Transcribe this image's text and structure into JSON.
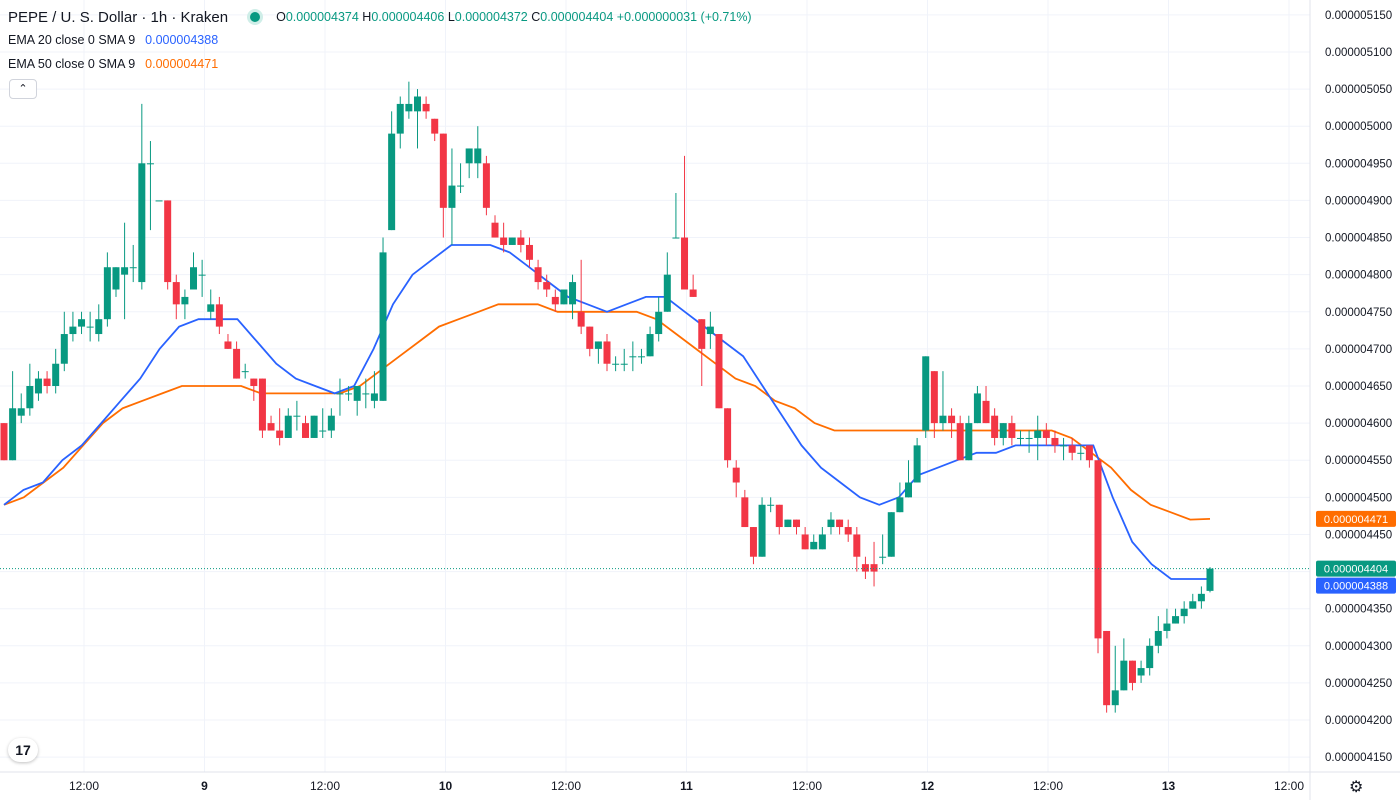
{
  "header": {
    "title": "PEPE / U. S. Dollar · 1h · Kraken",
    "ohlc": {
      "o_label": "O",
      "o": "0.000004374",
      "h_label": "H",
      "h": "0.000004406",
      "l_label": "L",
      "l": "0.000004372",
      "c_label": "C",
      "c": "0.000004404",
      "change": "+0.000000031 (+0.71%)"
    },
    "ema20_label": "EMA 20 close 0 SMA 9",
    "ema20_value": "0.000004388",
    "ema50_label": "EMA 50 close 0 SMA 9",
    "ema50_value": "0.000004471",
    "collapse_icon": "chevron-up-icon",
    "logo_text": "17",
    "settings_icon": "gear-icon"
  },
  "colors": {
    "up": "#089981",
    "down": "#f23645",
    "ema20": "#2962ff",
    "ema50": "#ff6d00",
    "grid": "#f0f3fa",
    "text": "#131722"
  },
  "chart_data": {
    "type": "candlestick",
    "ylim": [
      4.13e-06,
      5.17e-06
    ],
    "y_ticks": [
      "0.000005150",
      "0.000005100",
      "0.000005050",
      "0.000005000",
      "0.000004950",
      "0.000004900",
      "0.000004850",
      "0.000004800",
      "0.000004750",
      "0.000004700",
      "0.000004650",
      "0.000004600",
      "0.000004550",
      "0.000004500",
      "0.000004450",
      "0.000004400",
      "0.000004350",
      "0.000004300",
      "0.000004250",
      "0.000004200",
      "0.000004150"
    ],
    "x_tick_labels": [
      "12:00",
      "9",
      "12:00",
      "10",
      "12:00",
      "11",
      "12:00",
      "12",
      "12:00",
      "13",
      "12:00"
    ],
    "bold_x_ticks": [
      "9",
      "10",
      "11",
      "12",
      "13"
    ],
    "grid": true,
    "last_price": "0.000004404",
    "price_tags": [
      {
        "label": "0.000004471",
        "value": 4.471e-06,
        "color": "#ff6d00"
      },
      {
        "label": "0.000004404",
        "value": 4.404e-06,
        "color": "#089981"
      },
      {
        "label": "0.000004388",
        "value": 4.388e-06,
        "color": "#2962ff"
      }
    ],
    "candles": [
      [
        4.6,
        4.55,
        4.6,
        4.55
      ],
      [
        4.55,
        4.62,
        4.67,
        4.55
      ],
      [
        4.61,
        4.62,
        4.64,
        4.6
      ],
      [
        4.62,
        4.65,
        4.68,
        4.61
      ],
      [
        4.64,
        4.66,
        4.67,
        4.63
      ],
      [
        4.66,
        4.65,
        4.67,
        4.64
      ],
      [
        4.65,
        4.68,
        4.7,
        4.64
      ],
      [
        4.68,
        4.72,
        4.75,
        4.67
      ],
      [
        4.72,
        4.73,
        4.75,
        4.71
      ],
      [
        4.73,
        4.74,
        4.75,
        4.72
      ],
      [
        4.73,
        4.73,
        4.75,
        4.71
      ],
      [
        4.72,
        4.74,
        4.76,
        4.71
      ],
      [
        4.74,
        4.81,
        4.83,
        4.73
      ],
      [
        4.78,
        4.81,
        4.81,
        4.77
      ],
      [
        4.8,
        4.81,
        4.87,
        4.74
      ],
      [
        4.81,
        4.81,
        4.84,
        4.79
      ],
      [
        4.79,
        4.95,
        5.03,
        4.78
      ],
      [
        4.95,
        4.95,
        4.98,
        4.86
      ],
      [
        4.9,
        4.9,
        4.9,
        4.9
      ],
      [
        4.9,
        4.79,
        4.9,
        4.78
      ],
      [
        4.79,
        4.76,
        4.8,
        4.74
      ],
      [
        4.76,
        4.77,
        4.78,
        4.74
      ],
      [
        4.78,
        4.81,
        4.83,
        4.78
      ],
      [
        4.8,
        4.8,
        4.82,
        4.77
      ],
      [
        4.75,
        4.76,
        4.78,
        4.74
      ],
      [
        4.76,
        4.73,
        4.77,
        4.72
      ],
      [
        4.71,
        4.7,
        4.72,
        4.7
      ],
      [
        4.7,
        4.66,
        4.71,
        4.66
      ],
      [
        4.67,
        4.67,
        4.68,
        4.66
      ],
      [
        4.66,
        4.65,
        4.66,
        4.63
      ],
      [
        4.66,
        4.59,
        4.66,
        4.58
      ],
      [
        4.6,
        4.59,
        4.61,
        4.59
      ],
      [
        4.59,
        4.58,
        4.62,
        4.57
      ],
      [
        4.58,
        4.61,
        4.62,
        4.58
      ],
      [
        4.61,
        4.61,
        4.63,
        4.59
      ],
      [
        4.6,
        4.58,
        4.61,
        4.58
      ],
      [
        4.58,
        4.61,
        4.61,
        4.58
      ],
      [
        4.59,
        4.59,
        4.62,
        4.58
      ],
      [
        4.59,
        4.61,
        4.62,
        4.58
      ],
      [
        4.64,
        4.64,
        4.66,
        4.61
      ],
      [
        4.64,
        4.64,
        4.65,
        4.63
      ],
      [
        4.63,
        4.65,
        4.65,
        4.61
      ],
      [
        4.64,
        4.64,
        4.66,
        4.62
      ],
      [
        4.63,
        4.64,
        4.67,
        4.62
      ],
      [
        4.63,
        4.83,
        4.85,
        4.63
      ],
      [
        4.86,
        4.99,
        5.02,
        4.86
      ],
      [
        4.99,
        5.03,
        5.04,
        4.97
      ],
      [
        5.02,
        5.03,
        5.06,
        5.01
      ],
      [
        5.02,
        5.04,
        5.05,
        4.97
      ],
      [
        5.03,
        5.02,
        5.04,
        5.01
      ],
      [
        5.01,
        4.99,
        5.01,
        4.98
      ],
      [
        4.99,
        4.89,
        4.99,
        4.85
      ],
      [
        4.89,
        4.92,
        4.97,
        4.84
      ],
      [
        4.92,
        4.92,
        4.95,
        4.91
      ],
      [
        4.95,
        4.97,
        4.97,
        4.93
      ],
      [
        4.95,
        4.97,
        5.0,
        4.93
      ],
      [
        4.95,
        4.89,
        4.96,
        4.88
      ],
      [
        4.87,
        4.85,
        4.88,
        4.85
      ],
      [
        4.85,
        4.84,
        4.87,
        4.83
      ],
      [
        4.84,
        4.85,
        4.85,
        4.84
      ],
      [
        4.85,
        4.84,
        4.86,
        4.83
      ],
      [
        4.84,
        4.82,
        4.85,
        4.81
      ],
      [
        4.81,
        4.79,
        4.82,
        4.78
      ],
      [
        4.79,
        4.78,
        4.8,
        4.77
      ],
      [
        4.77,
        4.76,
        4.78,
        4.75
      ],
      [
        4.76,
        4.78,
        4.78,
        4.76
      ],
      [
        4.76,
        4.79,
        4.8,
        4.74
      ],
      [
        4.75,
        4.73,
        4.82,
        4.72
      ],
      [
        4.73,
        4.7,
        4.73,
        4.69
      ],
      [
        4.7,
        4.71,
        4.71,
        4.68
      ],
      [
        4.71,
        4.68,
        4.72,
        4.67
      ],
      [
        4.68,
        4.68,
        4.69,
        4.67
      ],
      [
        4.68,
        4.68,
        4.7,
        4.67
      ],
      [
        4.69,
        4.69,
        4.71,
        4.67
      ],
      [
        4.69,
        4.69,
        4.7,
        4.68
      ],
      [
        4.69,
        4.72,
        4.73,
        4.69
      ],
      [
        4.72,
        4.75,
        4.77,
        4.71
      ],
      [
        4.75,
        4.8,
        4.83,
        4.75
      ],
      [
        4.85,
        4.85,
        4.91,
        4.85
      ],
      [
        4.85,
        4.78,
        4.96,
        4.78
      ],
      [
        4.78,
        4.77,
        4.8,
        4.77
      ],
      [
        4.74,
        4.7,
        4.74,
        4.65
      ],
      [
        4.72,
        4.73,
        4.75,
        4.7
      ],
      [
        4.72,
        4.62,
        4.72,
        4.62
      ],
      [
        4.62,
        4.55,
        4.62,
        4.54
      ],
      [
        4.54,
        4.52,
        4.55,
        4.5
      ],
      [
        4.5,
        4.46,
        4.51,
        4.46
      ],
      [
        4.46,
        4.42,
        4.46,
        4.41
      ],
      [
        4.42,
        4.49,
        4.5,
        4.42
      ],
      [
        4.49,
        4.49,
        4.5,
        4.48
      ],
      [
        4.49,
        4.46,
        4.49,
        4.45
      ],
      [
        4.46,
        4.47,
        4.47,
        4.46
      ],
      [
        4.47,
        4.46,
        4.47,
        4.45
      ],
      [
        4.45,
        4.43,
        4.46,
        4.43
      ],
      [
        4.43,
        4.44,
        4.45,
        4.43
      ],
      [
        4.43,
        4.45,
        4.46,
        4.43
      ],
      [
        4.46,
        4.47,
        4.48,
        4.45
      ],
      [
        4.47,
        4.46,
        4.47,
        4.45
      ],
      [
        4.46,
        4.45,
        4.47,
        4.44
      ],
      [
        4.45,
        4.42,
        4.46,
        4.4
      ],
      [
        4.41,
        4.4,
        4.42,
        4.39
      ],
      [
        4.41,
        4.4,
        4.44,
        4.38
      ],
      [
        4.42,
        4.42,
        4.45,
        4.41
      ],
      [
        4.42,
        4.48,
        4.48,
        4.42
      ],
      [
        4.48,
        4.5,
        4.52,
        4.48
      ],
      [
        4.5,
        4.52,
        4.55,
        4.5
      ],
      [
        4.52,
        4.57,
        4.58,
        4.52
      ],
      [
        4.59,
        4.69,
        4.69,
        4.58
      ],
      [
        4.67,
        4.6,
        4.67,
        4.58
      ],
      [
        4.6,
        4.61,
        4.67,
        4.59
      ],
      [
        4.61,
        4.6,
        4.62,
        4.58
      ],
      [
        4.6,
        4.55,
        4.61,
        4.55
      ],
      [
        4.55,
        4.6,
        4.61,
        4.55
      ],
      [
        4.6,
        4.64,
        4.65,
        4.6
      ],
      [
        4.63,
        4.6,
        4.65,
        4.6
      ],
      [
        4.61,
        4.58,
        4.62,
        4.57
      ],
      [
        4.58,
        4.6,
        4.6,
        4.57
      ],
      [
        4.6,
        4.58,
        4.61,
        4.57
      ],
      [
        4.58,
        4.58,
        4.59,
        4.57
      ],
      [
        4.58,
        4.58,
        4.59,
        4.56
      ],
      [
        4.58,
        4.59,
        4.61,
        4.55
      ],
      [
        4.59,
        4.58,
        4.6,
        4.57
      ],
      [
        4.58,
        4.57,
        4.59,
        4.56
      ],
      [
        4.57,
        4.57,
        4.58,
        4.55
      ],
      [
        4.57,
        4.56,
        4.58,
        4.55
      ],
      [
        4.56,
        4.56,
        4.57,
        4.55
      ],
      [
        4.57,
        4.55,
        4.57,
        4.54
      ],
      [
        4.55,
        4.31,
        4.55,
        4.29
      ],
      [
        4.32,
        4.22,
        4.32,
        4.21
      ],
      [
        4.22,
        4.24,
        4.3,
        4.21
      ],
      [
        4.24,
        4.28,
        4.31,
        4.24
      ],
      [
        4.28,
        4.25,
        4.28,
        4.24
      ],
      [
        4.26,
        4.27,
        4.28,
        4.25
      ],
      [
        4.27,
        4.3,
        4.31,
        4.26
      ],
      [
        4.3,
        4.32,
        4.34,
        4.29
      ],
      [
        4.32,
        4.33,
        4.35,
        4.31
      ],
      [
        4.33,
        4.34,
        4.35,
        4.33
      ],
      [
        4.34,
        4.35,
        4.36,
        4.33
      ],
      [
        4.35,
        4.36,
        4.37,
        4.35
      ],
      [
        4.36,
        4.37,
        4.38,
        4.35
      ],
      [
        4.374,
        4.404,
        4.406,
        4.372
      ]
    ],
    "ema20": [
      4.49,
      4.51,
      4.52,
      4.55,
      4.57,
      4.6,
      4.63,
      4.66,
      4.7,
      4.73,
      4.74,
      4.74,
      4.74,
      4.71,
      4.68,
      4.66,
      4.65,
      4.64,
      4.65,
      4.7,
      4.76,
      4.8,
      4.82,
      4.84,
      4.84,
      4.84,
      4.83,
      4.81,
      4.79,
      4.77,
      4.76,
      4.75,
      4.76,
      4.77,
      4.77,
      4.75,
      4.73,
      4.71,
      4.69,
      4.65,
      4.61,
      4.57,
      4.54,
      4.52,
      4.5,
      4.49,
      4.5,
      4.53,
      4.54,
      4.55,
      4.56,
      4.56,
      4.57,
      4.57,
      4.57,
      4.57,
      4.57,
      4.5,
      4.44,
      4.41,
      4.39,
      4.39,
      4.39
    ],
    "ema50": [
      4.49,
      4.5,
      4.52,
      4.54,
      4.57,
      4.6,
      4.62,
      4.63,
      4.64,
      4.65,
      4.65,
      4.65,
      4.65,
      4.64,
      4.64,
      4.64,
      4.64,
      4.64,
      4.65,
      4.67,
      4.69,
      4.71,
      4.73,
      4.74,
      4.75,
      4.76,
      4.76,
      4.76,
      4.75,
      4.75,
      4.75,
      4.75,
      4.75,
      4.74,
      4.72,
      4.7,
      4.68,
      4.66,
      4.65,
      4.63,
      4.62,
      4.6,
      4.59,
      4.59,
      4.59,
      4.59,
      4.59,
      4.59,
      4.59,
      4.59,
      4.59,
      4.59,
      4.59,
      4.59,
      4.58,
      4.56,
      4.54,
      4.51,
      4.49,
      4.48,
      4.47,
      4.471
    ]
  }
}
